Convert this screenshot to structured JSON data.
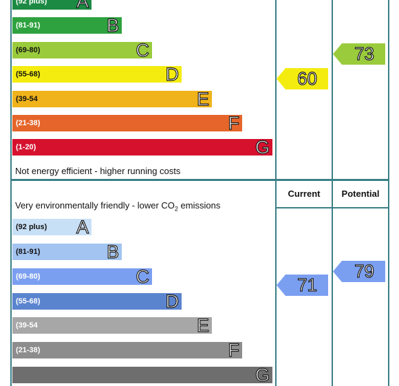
{
  "energy": {
    "bands": [
      {
        "range": "(92 plus)",
        "letter": "A",
        "color": "#1c8a43"
      },
      {
        "range": "(81-91)",
        "letter": "B",
        "color": "#2ea23f"
      },
      {
        "range": "(69-80)",
        "letter": "C",
        "color": "#9acb3c"
      },
      {
        "range": "(55-68)",
        "letter": "D",
        "color": "#f4ec0f"
      },
      {
        "range": "(39-54",
        "letter": "E",
        "color": "#f0b31b"
      },
      {
        "range": "(21-38)",
        "letter": "F",
        "color": "#e5652a"
      },
      {
        "range": "(1-20)",
        "letter": "G",
        "color": "#d5112e"
      }
    ],
    "footer_note": "Not energy efficient - higher running costs",
    "current": {
      "value": "60",
      "band": "D",
      "color": "#f4ec0f"
    },
    "potential": {
      "value": "73",
      "band": "C",
      "color": "#9acb3c"
    }
  },
  "environmental": {
    "header_note": "Very environmentally friendly - lower CO",
    "header_note_sub": "2",
    "header_note_end": " emissions",
    "current_label": "Current",
    "potential_label": "Potential",
    "bands": [
      {
        "range": "(92 plus)",
        "letter": "A",
        "color": "#c8e0f6"
      },
      {
        "range": "(81-91)",
        "letter": "B",
        "color": "#a3c4f0"
      },
      {
        "range": "(69-80)",
        "letter": "C",
        "color": "#7b9ff0"
      },
      {
        "range": "(55-68)",
        "letter": "D",
        "color": "#5b84cf"
      },
      {
        "range": "(39-54",
        "letter": "E",
        "color": "#a7a7a7"
      },
      {
        "range": "(21-38)",
        "letter": "F",
        "color": "#8d8d8d"
      },
      {
        "range": "",
        "letter": "G",
        "color": "#6e6e6e"
      }
    ],
    "current": {
      "value": "71",
      "band": "C",
      "color": "#7b9ff0"
    },
    "potential": {
      "value": "79",
      "band": "C",
      "color": "#7b9ff0"
    }
  }
}
